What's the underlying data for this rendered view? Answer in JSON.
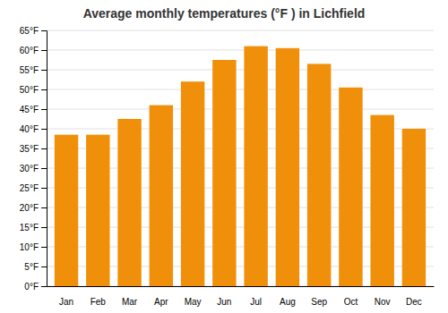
{
  "chart_data": {
    "type": "bar",
    "title": "Average monthly temperatures (°F ) in Lichfield",
    "categories": [
      "Jan",
      "Feb",
      "Mar",
      "Apr",
      "May",
      "Jun",
      "Jul",
      "Aug",
      "Sep",
      "Oct",
      "Nov",
      "Dec"
    ],
    "values": [
      38.5,
      38.5,
      42.5,
      46.0,
      52.0,
      57.5,
      61.0,
      60.5,
      56.5,
      50.5,
      43.5,
      40.0
    ],
    "color": "#F0900A",
    "ylim": [
      0,
      65
    ],
    "yticks": [
      {
        "value": 0,
        "label": "0°F"
      },
      {
        "value": 5,
        "label": "5°F"
      },
      {
        "value": 10,
        "label": "10°F"
      },
      {
        "value": 15,
        "label": "15°F"
      },
      {
        "value": 20,
        "label": "20°F"
      },
      {
        "value": 25,
        "label": "25°F"
      },
      {
        "value": 30,
        "label": "30°F"
      },
      {
        "value": 35,
        "label": "35°F"
      },
      {
        "value": 40,
        "label": "40°F"
      },
      {
        "value": 45,
        "label": "45°F"
      },
      {
        "value": 50,
        "label": "50°F"
      },
      {
        "value": 55,
        "label": "55°F"
      },
      {
        "value": 60,
        "label": "60°F"
      },
      {
        "value": 65,
        "label": "65°F"
      }
    ],
    "grid": true
  }
}
